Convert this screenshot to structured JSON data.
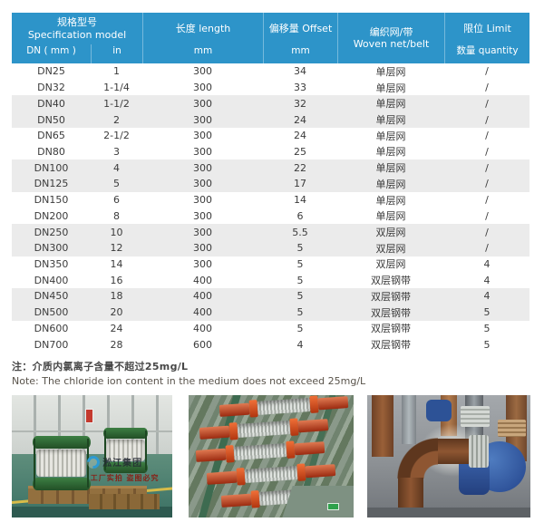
{
  "colors": {
    "header_blue": "#2d94c9",
    "row_alt": "#ebebeb",
    "body_text": "#3b3b3b"
  },
  "table": {
    "header": {
      "spec_cn": "规格型号",
      "spec_en": "Specification model",
      "dn": "DN ( mm )",
      "in": "in",
      "length_cn": "长度 length",
      "length_unit": "mm",
      "offset_cn": "偏移量 Offset",
      "offset_unit": "mm",
      "woven_cn": "编织网/带",
      "woven_en": "Woven net/belt",
      "limit_cn": "限位 Limit",
      "limit_sub": "数量 quantity"
    },
    "rows": [
      {
        "dn": "DN25",
        "in": "1",
        "length": "300",
        "offset": "34",
        "woven": "单层网",
        "limit": "/"
      },
      {
        "dn": "DN32",
        "in": "1-1/4",
        "length": "300",
        "offset": "33",
        "woven": "单层网",
        "limit": "/"
      },
      {
        "dn": "DN40",
        "in": "1-1/2",
        "length": "300",
        "offset": "32",
        "woven": "单层网",
        "limit": "/"
      },
      {
        "dn": "DN50",
        "in": "2",
        "length": "300",
        "offset": "24",
        "woven": "单层网",
        "limit": "/"
      },
      {
        "dn": "DN65",
        "in": "2-1/2",
        "length": "300",
        "offset": "24",
        "woven": "单层网",
        "limit": "/"
      },
      {
        "dn": "DN80",
        "in": "3",
        "length": "300",
        "offset": "25",
        "woven": "单层网",
        "limit": "/"
      },
      {
        "dn": "DN100",
        "in": "4",
        "length": "300",
        "offset": "22",
        "woven": "单层网",
        "limit": "/"
      },
      {
        "dn": "DN125",
        "in": "5",
        "length": "300",
        "offset": "17",
        "woven": "单层网",
        "limit": "/"
      },
      {
        "dn": "DN150",
        "in": "6",
        "length": "300",
        "offset": "14",
        "woven": "单层网",
        "limit": "/"
      },
      {
        "dn": "DN200",
        "in": "8",
        "length": "300",
        "offset": "6",
        "woven": "单层网",
        "limit": "/"
      },
      {
        "dn": "DN250",
        "in": "10",
        "length": "300",
        "offset": "5.5",
        "woven": "双层网",
        "limit": "/"
      },
      {
        "dn": "DN300",
        "in": "12",
        "length": "300",
        "offset": "5",
        "woven": "双层网",
        "limit": "/"
      },
      {
        "dn": "DN350",
        "in": "14",
        "length": "300",
        "offset": "5",
        "woven": "双层网",
        "limit": "4"
      },
      {
        "dn": "DN400",
        "in": "16",
        "length": "400",
        "offset": "5",
        "woven": "双层钢带",
        "limit": "4"
      },
      {
        "dn": "DN450",
        "in": "18",
        "length": "400",
        "offset": "5",
        "woven": "双层钢带",
        "limit": "4"
      },
      {
        "dn": "DN500",
        "in": "20",
        "length": "400",
        "offset": "5",
        "woven": "双层钢带",
        "limit": "5"
      },
      {
        "dn": "DN600",
        "in": "24",
        "length": "400",
        "offset": "5",
        "woven": "双层钢带",
        "limit": "5"
      },
      {
        "dn": "DN700",
        "in": "28",
        "length": "600",
        "offset": "4",
        "woven": "双层钢带",
        "limit": "5"
      }
    ]
  },
  "notes": {
    "cn": "注：介质内氯离子含量不超过25mg/L",
    "en": "Note: The chloride ion content in the medium does not exceed 25mg/L"
  },
  "watermark": {
    "brand": "淞江集团",
    "slogan": "工厂实拍 盗图必究"
  }
}
